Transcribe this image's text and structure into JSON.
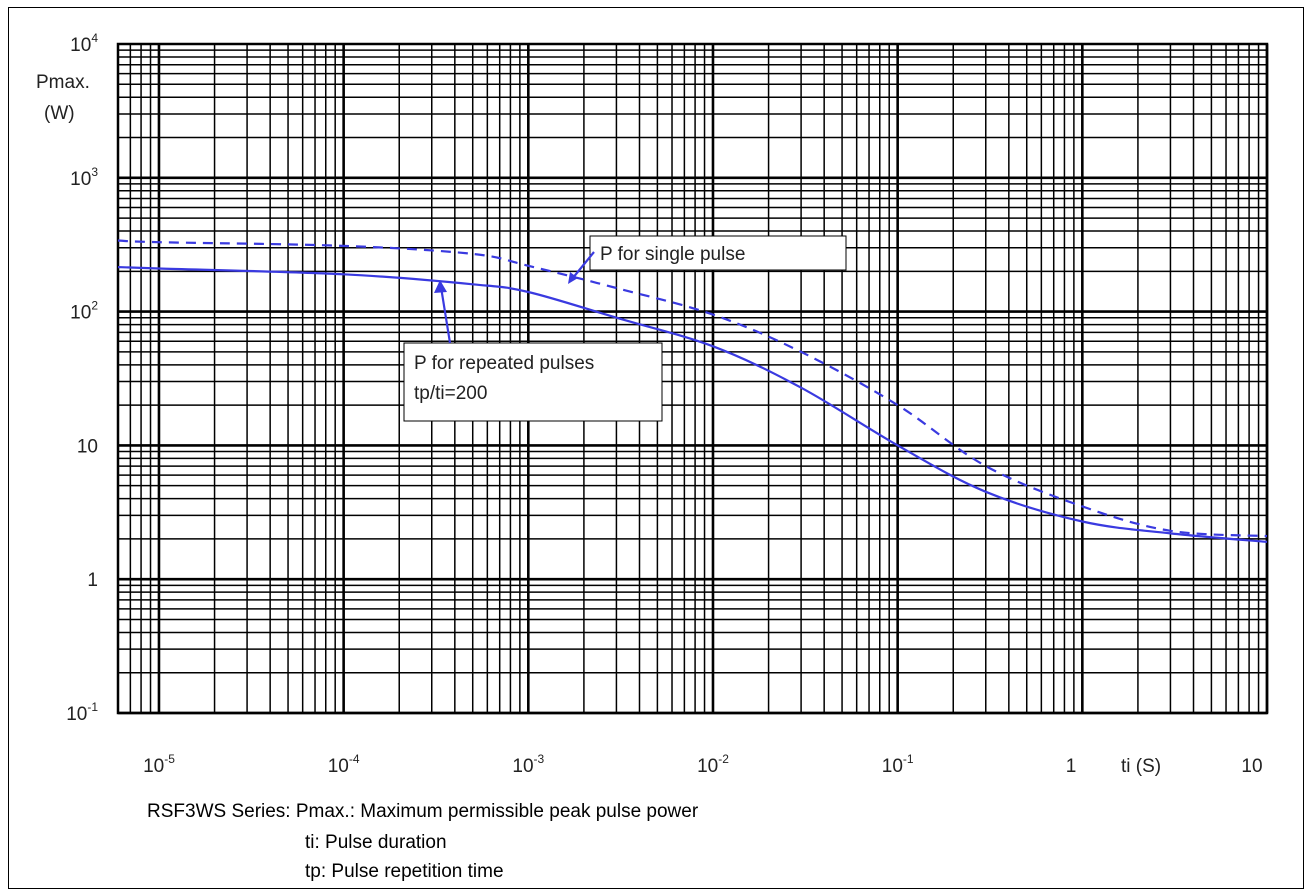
{
  "chart_data": {
    "type": "line",
    "x_scale": "log",
    "y_scale": "log",
    "xlim": [
      6e-06,
      10
    ],
    "ylim": [
      0.1,
      10000
    ],
    "grid": true,
    "xlabel": "ti (S)",
    "ylabel_line1": "Pmax.",
    "ylabel_line2": "(W)",
    "x_ticks": [
      {
        "value": 1e-05,
        "base": "10",
        "exp": "-5"
      },
      {
        "value": 0.0001,
        "base": "10",
        "exp": "-4"
      },
      {
        "value": 0.001,
        "base": "10",
        "exp": "-3"
      },
      {
        "value": 0.01,
        "base": "10",
        "exp": "-2"
      },
      {
        "value": 0.1,
        "base": "10",
        "exp": "-1"
      },
      {
        "value": 1,
        "base": "1",
        "exp": ""
      },
      {
        "value": 10,
        "base": "10",
        "exp": ""
      }
    ],
    "y_ticks": [
      {
        "value": 10000,
        "base": "10",
        "exp": "4"
      },
      {
        "value": 1000,
        "base": "10",
        "exp": "3"
      },
      {
        "value": 100,
        "base": "10",
        "exp": "2"
      },
      {
        "value": 10,
        "base": "10",
        "exp": ""
      },
      {
        "value": 1,
        "base": "1",
        "exp": ""
      },
      {
        "value": 0.1,
        "base": "10",
        "exp": "-1"
      }
    ],
    "series": [
      {
        "name": "P for single pulse",
        "style": "dashed",
        "color": "#3a3ae0",
        "x": [
          6e-06,
          1e-05,
          0.0001,
          0.0005,
          0.001,
          0.003,
          0.01,
          0.03,
          0.1,
          0.3,
          1,
          3,
          10
        ],
        "y": [
          340,
          330,
          310,
          270,
          220,
          150,
          95,
          50,
          20,
          7,
          3.5,
          2.3,
          2.1
        ]
      },
      {
        "name": "P for repeated pulses",
        "style": "solid",
        "color": "#3a3ae0",
        "x": [
          6e-06,
          1e-05,
          0.0001,
          0.0005,
          0.001,
          0.003,
          0.01,
          0.03,
          0.1,
          0.3,
          1,
          3,
          10
        ],
        "y": [
          215,
          210,
          190,
          160,
          140,
          90,
          55,
          27,
          10,
          4.5,
          2.7,
          2.2,
          1.9
        ]
      }
    ],
    "annotations": [
      {
        "text": "P for single pulse"
      },
      {
        "text": "P for repeated pulses"
      },
      {
        "text": "tp/ti=200"
      }
    ]
  },
  "caption": {
    "line1": "RSF3WS Series: Pmax.: Maximum permissible peak pulse power",
    "line2": "ti: Pulse duration",
    "line3": "tp: Pulse repetition time"
  }
}
